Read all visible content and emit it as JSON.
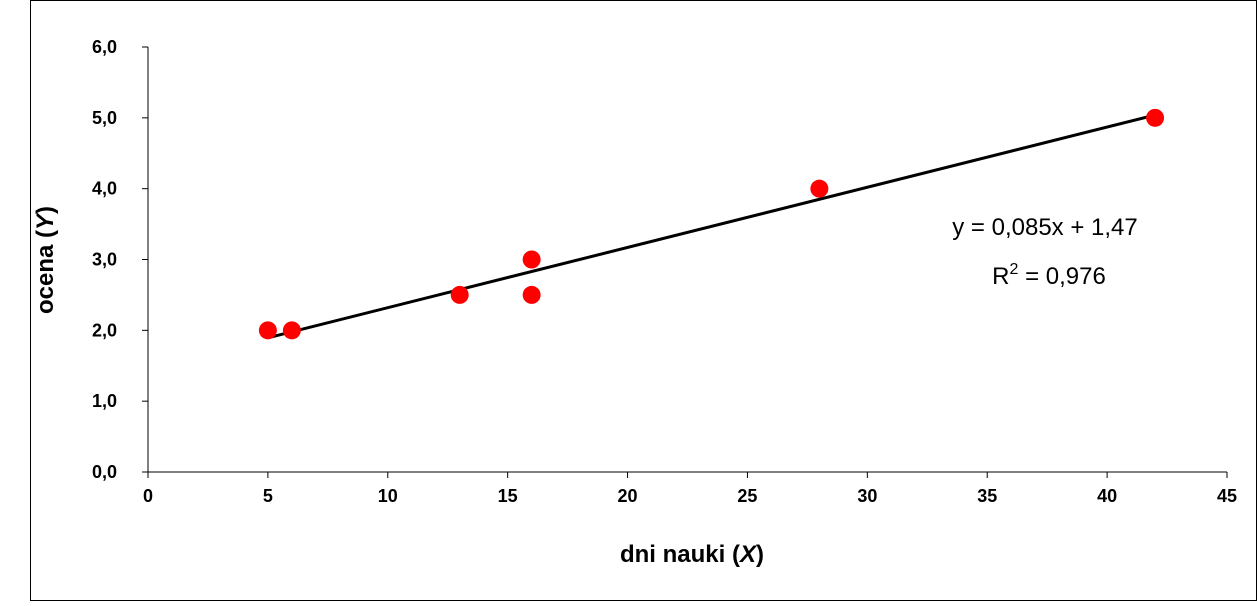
{
  "chart_data": {
    "type": "scatter",
    "title": "",
    "xlabel_main": "dni nauki (",
    "xlabel_var": "X",
    "xlabel_end": ")",
    "ylabel_main": "ocena (",
    "ylabel_var": "Y",
    "ylabel_end": ")",
    "xlim": [
      0,
      45
    ],
    "ylim": [
      0,
      6
    ],
    "x_ticks": [
      0,
      5,
      10,
      15,
      20,
      25,
      30,
      35,
      40,
      45
    ],
    "x_tick_labels": [
      "0",
      "5",
      "10",
      "15",
      "20",
      "25",
      "30",
      "35",
      "40",
      "45"
    ],
    "y_ticks": [
      0,
      1,
      2,
      3,
      4,
      5,
      6
    ],
    "y_tick_labels": [
      "0,0",
      "1,0",
      "2,0",
      "3,0",
      "4,0",
      "5,0",
      "6,0"
    ],
    "grid": false,
    "legend": "none",
    "points": [
      {
        "x": 5,
        "y": 2.0
      },
      {
        "x": 6,
        "y": 2.0
      },
      {
        "x": 13,
        "y": 2.5
      },
      {
        "x": 16,
        "y": 3.0
      },
      {
        "x": 16,
        "y": 2.5
      },
      {
        "x": 28,
        "y": 4.0
      },
      {
        "x": 42,
        "y": 5.0
      }
    ],
    "point_color": "#ff0000",
    "trendline": {
      "type": "linear",
      "slope": 0.085,
      "intercept": 1.47,
      "x_range": [
        5,
        42
      ],
      "color": "#000000",
      "equation": "y = 0,085x + 1,47",
      "r2_prefix": "R",
      "r2_sup": "2",
      "r2_rest": " = 0,976"
    }
  }
}
